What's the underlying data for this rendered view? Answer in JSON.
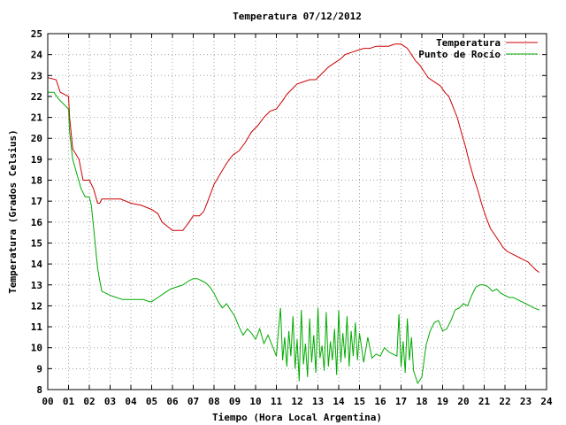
{
  "chart_data": {
    "type": "line",
    "title": "Temperatura 07/12/2012",
    "xlabel": "Tiempo (Hora Local Argentina)",
    "ylabel": "Temperatura (Grados Celsius)",
    "xlim": [
      0,
      24
    ],
    "ylim": [
      8,
      25
    ],
    "x_ticks": [
      "00",
      "01",
      "02",
      "03",
      "04",
      "05",
      "06",
      "07",
      "08",
      "09",
      "10",
      "11",
      "12",
      "13",
      "14",
      "15",
      "16",
      "17",
      "18",
      "19",
      "20",
      "21",
      "22",
      "23",
      "24"
    ],
    "y_ticks": [
      "8",
      "9",
      "10",
      "11",
      "12",
      "13",
      "14",
      "15",
      "16",
      "17",
      "18",
      "19",
      "20",
      "21",
      "22",
      "23",
      "24",
      "25"
    ],
    "grid": true,
    "legend_position": "top-right",
    "series": [
      {
        "name": "Temperatura",
        "color": "#cc0000",
        "x": [
          0,
          0.4,
          0.6,
          1.0,
          1.05,
          1.2,
          1.5,
          1.7,
          2.0,
          2.2,
          2.4,
          2.5,
          2.6,
          3.0,
          3.5,
          4.0,
          4.5,
          5.0,
          5.3,
          5.5,
          6.0,
          6.3,
          6.5,
          6.8,
          7.0,
          7.3,
          7.5,
          7.7,
          8.0,
          8.3,
          8.6,
          8.9,
          9.2,
          9.5,
          9.8,
          10.1,
          10.4,
          10.7,
          11.0,
          11.3,
          11.5,
          11.8,
          12.0,
          12.3,
          12.6,
          12.9,
          13.2,
          13.5,
          13.8,
          14.1,
          14.3,
          14.6,
          14.9,
          15.2,
          15.5,
          15.8,
          16.1,
          16.4,
          16.7,
          17.0,
          17.3,
          17.5,
          17.7,
          17.9,
          18.1,
          18.3,
          18.6,
          18.9,
          19.1,
          19.3,
          19.5,
          19.7,
          19.9,
          20.1,
          20.3,
          20.5,
          20.7,
          20.9,
          21.1,
          21.3,
          21.5,
          21.7,
          21.9,
          22.1,
          22.3,
          22.5,
          22.7,
          22.9,
          23.1,
          23.3,
          23.5,
          23.65
        ],
        "y": [
          22.9,
          22.8,
          22.2,
          22.0,
          21.0,
          19.5,
          19.0,
          18.0,
          18.0,
          17.6,
          16.9,
          16.9,
          17.1,
          17.1,
          17.1,
          16.9,
          16.8,
          16.6,
          16.4,
          16.0,
          15.6,
          15.6,
          15.6,
          16.0,
          16.3,
          16.3,
          16.5,
          17.0,
          17.8,
          18.3,
          18.8,
          19.2,
          19.4,
          19.8,
          20.3,
          20.6,
          21.0,
          21.3,
          21.4,
          21.8,
          22.1,
          22.4,
          22.6,
          22.7,
          22.8,
          22.8,
          23.1,
          23.4,
          23.6,
          23.8,
          24.0,
          24.1,
          24.2,
          24.3,
          24.3,
          24.4,
          24.4,
          24.4,
          24.5,
          24.5,
          24.3,
          24.0,
          23.7,
          23.5,
          23.2,
          22.9,
          22.7,
          22.5,
          22.2,
          22.0,
          21.5,
          21.0,
          20.3,
          19.6,
          18.8,
          18.1,
          17.5,
          16.8,
          16.2,
          15.7,
          15.4,
          15.1,
          14.8,
          14.6,
          14.5,
          14.4,
          14.3,
          14.2,
          14.1,
          13.9,
          13.7,
          13.6
        ]
      },
      {
        "name": "Punto de Rocío",
        "color": "#00aa00",
        "x": [
          0,
          0.3,
          0.5,
          1.0,
          1.05,
          1.2,
          1.4,
          1.6,
          1.8,
          2.0,
          2.1,
          2.2,
          2.3,
          2.4,
          2.5,
          2.6,
          2.8,
          3.0,
          3.3,
          3.6,
          4.0,
          4.3,
          4.6,
          4.9,
          5.0,
          5.3,
          5.6,
          5.9,
          6.2,
          6.5,
          6.8,
          7.0,
          7.2,
          7.4,
          7.6,
          7.8,
          8.0,
          8.2,
          8.4,
          8.6,
          8.8,
          9.0,
          9.2,
          9.4,
          9.6,
          9.8,
          10.0,
          10.2,
          10.4,
          10.6,
          10.8,
          11.0,
          11.1,
          11.2,
          11.3,
          11.4,
          11.5,
          11.6,
          11.7,
          11.8,
          11.9,
          12.0,
          12.1,
          12.2,
          12.3,
          12.4,
          12.5,
          12.6,
          12.7,
          12.8,
          12.9,
          13.0,
          13.1,
          13.2,
          13.3,
          13.4,
          13.5,
          13.6,
          13.7,
          13.8,
          13.9,
          14.0,
          14.1,
          14.2,
          14.3,
          14.4,
          14.5,
          14.6,
          14.7,
          14.8,
          14.9,
          15.0,
          15.2,
          15.4,
          15.6,
          15.8,
          16.0,
          16.2,
          16.4,
          16.6,
          16.8,
          16.9,
          17.0,
          17.1,
          17.2,
          17.3,
          17.4,
          17.5,
          17.6,
          17.8,
          18.0,
          18.2,
          18.4,
          18.6,
          18.8,
          19.0,
          19.2,
          19.4,
          19.6,
          19.8,
          20.0,
          20.2,
          20.4,
          20.6,
          20.8,
          21.0,
          21.2,
          21.4,
          21.6,
          21.8,
          22.0,
          22.2,
          22.4,
          22.6,
          22.8,
          23.0,
          23.2,
          23.4,
          23.65
        ],
        "y": [
          22.2,
          22.2,
          21.9,
          21.4,
          20.3,
          19.0,
          18.3,
          17.6,
          17.2,
          17.2,
          16.8,
          15.8,
          14.8,
          13.8,
          13.2,
          12.7,
          12.6,
          12.5,
          12.4,
          12.3,
          12.3,
          12.3,
          12.3,
          12.2,
          12.2,
          12.4,
          12.6,
          12.8,
          12.9,
          13.0,
          13.2,
          13.3,
          13.3,
          13.2,
          13.1,
          12.9,
          12.6,
          12.2,
          11.9,
          12.1,
          11.8,
          11.5,
          11.0,
          10.6,
          10.9,
          10.7,
          10.4,
          10.9,
          10.2,
          10.6,
          10.1,
          9.6,
          10.8,
          11.9,
          9.4,
          10.5,
          9.1,
          10.8,
          9.6,
          11.5,
          9.0,
          10.4,
          8.4,
          11.8,
          9.2,
          10.2,
          8.6,
          11.4,
          9.3,
          10.6,
          8.8,
          11.9,
          9.5,
          10.1,
          8.9,
          11.7,
          9.1,
          10.3,
          9.4,
          10.9,
          8.7,
          11.8,
          9.3,
          10.7,
          9.5,
          11.5,
          9.1,
          10.8,
          9.6,
          11.2,
          9.4,
          10.7,
          9.3,
          10.5,
          9.5,
          9.7,
          9.6,
          10.0,
          9.8,
          9.7,
          9.6,
          11.6,
          9.1,
          10.3,
          8.8,
          11.4,
          9.4,
          10.5,
          8.9,
          8.3,
          8.6,
          10.1,
          10.8,
          11.2,
          11.3,
          10.8,
          10.9,
          11.3,
          11.8,
          11.9,
          12.1,
          12.0,
          12.5,
          12.9,
          13.0,
          13.0,
          12.9,
          12.7,
          12.8,
          12.6,
          12.5,
          12.4,
          12.4,
          12.3,
          12.2,
          12.1,
          12.0,
          11.9,
          11.8
        ]
      }
    ]
  }
}
